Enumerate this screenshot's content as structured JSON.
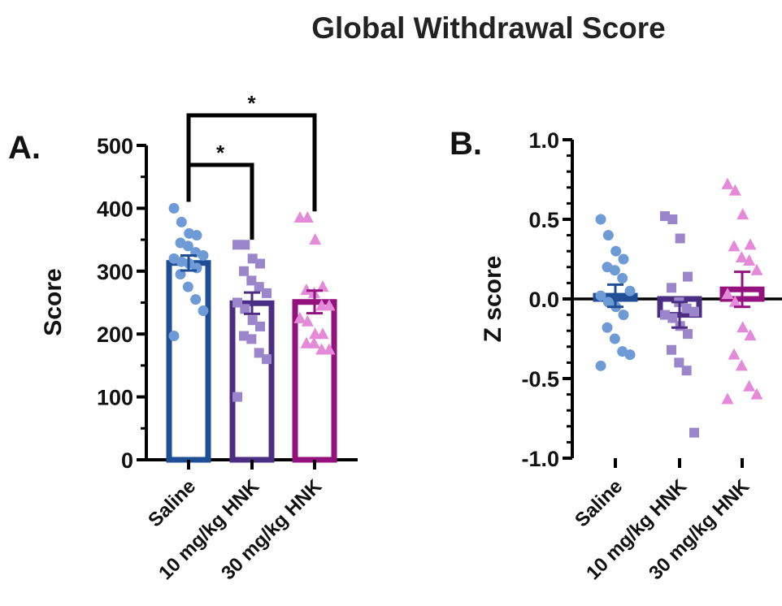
{
  "title": "Global Withdrawal Score",
  "colors": {
    "saline": "#1f4e96",
    "saline_dot": "#6e9ad6",
    "hnk10": "#4b2e84",
    "hnk10_dot": "#9b86cc",
    "hnk30": "#93127e",
    "hnk30_dot": "#e58ad8",
    "axis": "#000000"
  },
  "chart_data": [
    {
      "type": "bar",
      "panel_label": "A.",
      "title": "",
      "xlabel": "",
      "ylabel": "Score",
      "ylim": [
        0,
        500
      ],
      "yticks": [
        "0",
        "100",
        "200",
        "300",
        "400",
        "500"
      ],
      "categories": [
        "Saline",
        "10 mg/kg HNK",
        "30 mg/kg HNK"
      ],
      "series": [
        {
          "category": "Saline",
          "mean": 313,
          "sem": 12,
          "marker": "circle",
          "points": [
            400,
            378,
            360,
            357,
            345,
            340,
            330,
            325,
            320,
            315,
            312,
            305,
            295,
            275,
            255,
            237,
            197
          ]
        },
        {
          "category": "10 mg/kg HNK",
          "mean": 249,
          "sem": 17,
          "marker": "square",
          "points": [
            342,
            342,
            320,
            312,
            300,
            285,
            275,
            265,
            250,
            240,
            222,
            212,
            197,
            192,
            170,
            160,
            100
          ]
        },
        {
          "category": "30 mg/kg HNK",
          "mean": 251,
          "sem": 18,
          "marker": "triangle",
          "points": [
            385,
            385,
            350,
            275,
            270,
            265,
            245,
            245,
            225,
            220,
            200,
            200,
            185,
            185,
            175,
            175
          ]
        }
      ],
      "significance": [
        {
          "from": "Saline",
          "to": "10 mg/kg HNK",
          "label": "*"
        },
        {
          "from": "Saline",
          "to": "30 mg/kg HNK",
          "label": "*"
        }
      ]
    },
    {
      "type": "scatter",
      "panel_label": "B.",
      "title": "",
      "xlabel": "",
      "ylabel": "Z score",
      "ylim": [
        -1.0,
        1.0
      ],
      "yticks": [
        "-1.0",
        "-0.5",
        "0.0",
        "0.5",
        "1.0"
      ],
      "categories": [
        "Saline",
        "10 mg/kg HNK",
        "30 mg/kg HNK"
      ],
      "series": [
        {
          "category": "Saline",
          "mean": 0.02,
          "sem": 0.07,
          "marker": "circle",
          "points": [
            0.5,
            0.4,
            0.3,
            0.25,
            0.2,
            0.18,
            0.13,
            0.05,
            0.02,
            -0.02,
            -0.05,
            -0.1,
            -0.18,
            -0.25,
            -0.33,
            -0.35,
            -0.42
          ]
        },
        {
          "category": "10 mg/kg HNK",
          "mean": -0.1,
          "sem": 0.08,
          "marker": "square",
          "points": [
            0.52,
            0.5,
            0.38,
            0.14,
            0.07,
            -0.02,
            -0.06,
            -0.08,
            -0.1,
            -0.12,
            -0.17,
            -0.22,
            -0.32,
            -0.4,
            -0.45,
            -0.84
          ]
        },
        {
          "category": "30 mg/kg HNK",
          "mean": 0.06,
          "sem": 0.11,
          "marker": "triangle",
          "points": [
            0.72,
            0.68,
            0.53,
            0.34,
            0.33,
            0.26,
            0.24,
            0.18,
            0.03,
            -0.02,
            -0.18,
            -0.23,
            -0.35,
            -0.42,
            -0.55,
            -0.6,
            -0.63
          ]
        }
      ]
    }
  ]
}
